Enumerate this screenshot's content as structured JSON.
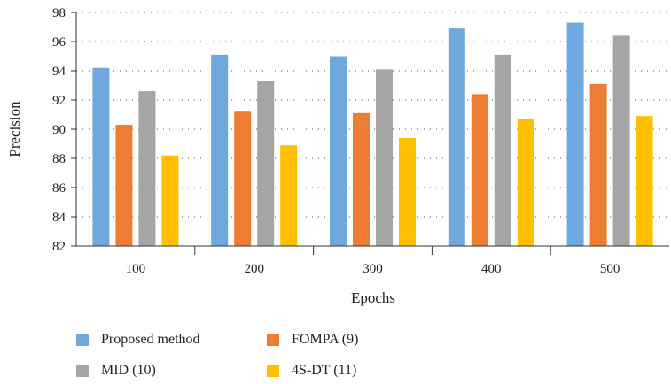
{
  "chart_data": {
    "type": "bar",
    "categories": [
      "100",
      "200",
      "300",
      "400",
      "500"
    ],
    "series": [
      {
        "name": "Proposed method",
        "color": "#6fa8dc",
        "values": [
          94.2,
          95.1,
          95.0,
          96.9,
          97.3
        ]
      },
      {
        "name": "FOMPA (9)",
        "color": "#ed7d31",
        "values": [
          90.3,
          91.2,
          91.1,
          92.4,
          93.1
        ]
      },
      {
        "name": "MID (10)",
        "color": "#a5a5a5",
        "values": [
          92.6,
          93.3,
          94.1,
          95.1,
          96.4
        ]
      },
      {
        "name": "4S-DT (11)",
        "color": "#ffc000",
        "values": [
          88.2,
          88.9,
          89.4,
          90.7,
          90.9
        ]
      }
    ],
    "xlabel": "Epochs",
    "ylabel": "Precision",
    "ylim": [
      82,
      98
    ],
    "yticks": [
      82,
      84,
      86,
      88,
      90,
      92,
      94,
      96,
      98
    ],
    "grid": "dotted horizontal",
    "legend_position": "bottom"
  }
}
